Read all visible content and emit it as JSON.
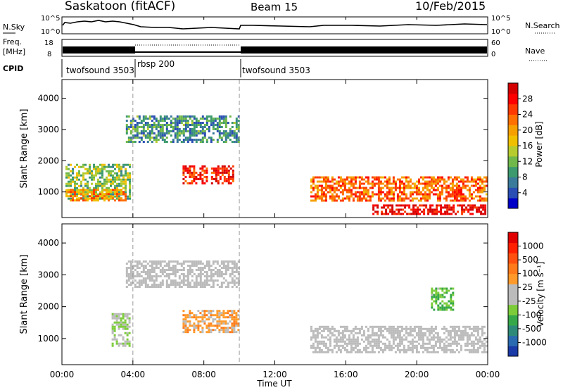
{
  "header": {
    "title": "Saskatoon (fitACF)",
    "beam": "Beam 15",
    "date": "10/Feb/2015"
  },
  "aux": {
    "nsky_label": "N.Sky",
    "nsky_ticks": [
      "10^5",
      "10^0"
    ],
    "nsearch_label": "N.Search",
    "freq_label": "Freq.",
    "freq_unit": "[MHz]",
    "freq_ticks": [
      "18",
      "8"
    ],
    "nave_ticks": [
      "60",
      "0"
    ],
    "nave_label": "Nave",
    "cpid_label": "CPID",
    "cpid_segments": [
      {
        "label": "twofsound 3503",
        "start_h": 0,
        "end_h": 4
      },
      {
        "label": "rbsp 200",
        "start_h": 4,
        "end_h": 10
      },
      {
        "label": "twofsound 3503",
        "start_h": 10,
        "end_h": 24
      }
    ]
  },
  "axes": {
    "ylabel": "Slant Range [km]",
    "yticks": [
      "4000",
      "3000",
      "2000",
      "1000"
    ],
    "xlabel": "Time UT",
    "xticks": [
      "00:00",
      "04:00",
      "08:00",
      "12:00",
      "16:00",
      "20:00",
      "00:00"
    ]
  },
  "colorbars": {
    "power": {
      "label": "Power [dB]",
      "ticks": [
        "28",
        "24",
        "20",
        "16",
        "12",
        "8",
        "4"
      ],
      "colors": [
        "#0000c8",
        "#2a4eb4",
        "#3a7a9a",
        "#3c9a6e",
        "#70b84a",
        "#b6cc2e",
        "#f0c000",
        "#f5a000",
        "#ff7000",
        "#ff3a00",
        "#ff0000",
        "#d40000"
      ]
    },
    "velocity": {
      "label": "Velocity [m s⁻¹]",
      "ticks": [
        "1000",
        "500",
        "100",
        "25",
        "-25",
        "-100",
        "-500",
        "-1000"
      ],
      "colors": [
        "#1a3aa8",
        "#2a6ab0",
        "#2d8a78",
        "#36a84a",
        "#7ccc3a",
        "#bbbbbb",
        "#bbbbbb",
        "#ff9a2a",
        "#ff7a1a",
        "#ff5010",
        "#ff2000",
        "#e00000"
      ]
    }
  },
  "chart_data": {
    "type": "heatmap",
    "title": "Saskatoon (fitACF)",
    "xlabel": "Time UT",
    "ylabel": "Slant Range [km]",
    "xlim": [
      0,
      24
    ],
    "ylim": [
      180,
      4600
    ],
    "mode_boundaries_h": [
      4,
      10
    ],
    "panels": [
      {
        "quantity": "Power [dB]",
        "clim": [
          0,
          30
        ],
        "regions": [
          {
            "name": "early backscatter",
            "t": [
              0.2,
              3.8
            ],
            "r": [
              800,
              1900
            ],
            "value": 12
          },
          {
            "name": "early near range",
            "t": [
              0.2,
              3.6
            ],
            "r": [
              700,
              1100
            ],
            "value": 20
          },
          {
            "name": "arc",
            "t": [
              3.6,
              10.0
            ],
            "r": [
              2600,
              3450
            ],
            "value": 8
          },
          {
            "name": "patch 07:00",
            "t": [
              6.8,
              8.2
            ],
            "r": [
              1300,
              1850
            ],
            "value": 26
          },
          {
            "name": "patch 09:00",
            "t": [
              8.4,
              9.6
            ],
            "r": [
              1250,
              1850
            ],
            "value": 26
          },
          {
            "name": "evening band",
            "t": [
              14.0,
              23.9
            ],
            "r": [
              700,
              1500
            ],
            "value": 22
          },
          {
            "name": "evening ground",
            "t": [
              17.5,
              23.9
            ],
            "r": [
              300,
              600
            ],
            "value": 28
          }
        ]
      },
      {
        "quantity": "Velocity [m s-1]",
        "clim": [
          -1000,
          1000
        ],
        "regions": [
          {
            "name": "early flow",
            "t": [
              2.8,
              3.8
            ],
            "r": [
              800,
              1800
            ],
            "value": 150
          },
          {
            "name": "arc",
            "t": [
              3.6,
              10.0
            ],
            "r": [
              2600,
              3450
            ],
            "value": 0
          },
          {
            "name": "morning flow",
            "t": [
              6.8,
              10.0
            ],
            "r": [
              1200,
              1900
            ],
            "value": -250
          },
          {
            "name": "evening ground",
            "t": [
              14.0,
              23.9
            ],
            "r": [
              600,
              1400
            ],
            "value": 0
          },
          {
            "name": "late eastward",
            "t": [
              20.8,
              22.0
            ],
            "r": [
              1900,
              2600
            ],
            "value": 300
          }
        ]
      }
    ]
  }
}
